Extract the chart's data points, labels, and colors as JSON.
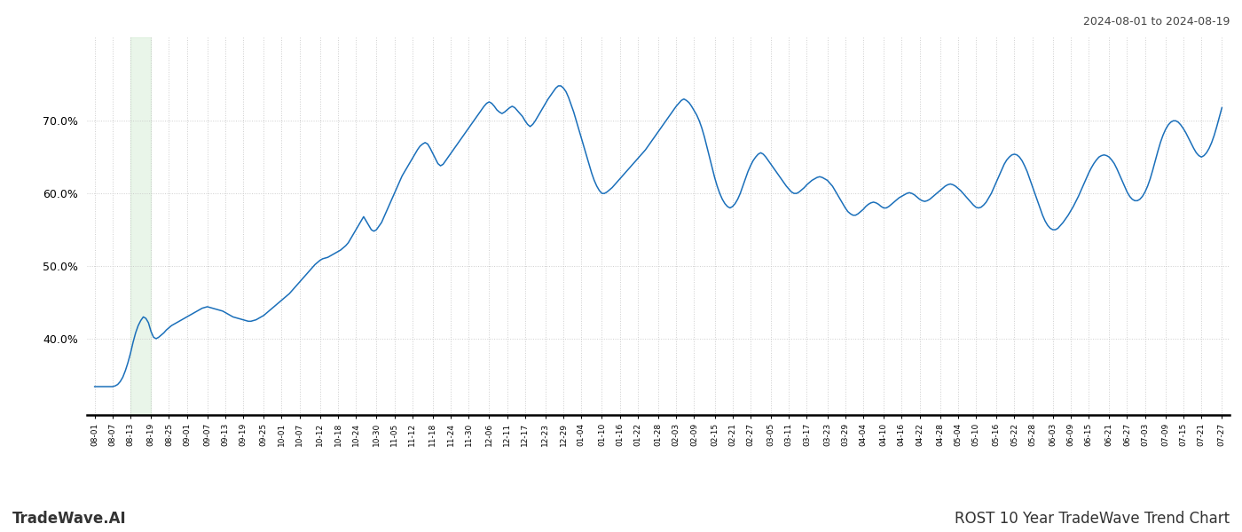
{
  "title_top_right": "2024-08-01 to 2024-08-19",
  "title_bottom_left": "TradeWave.AI",
  "title_bottom_right": "ROST 10 Year TradeWave Trend Chart",
  "line_color": "#1a6fba",
  "line_width": 1.1,
  "highlight_color": "#d4ecd4",
  "highlight_alpha": 0.5,
  "background_color": "#ffffff",
  "grid_color": "#c8c8c8",
  "grid_style": ":",
  "grid_alpha": 0.9,
  "ylim": [
    0.295,
    0.815
  ],
  "yticks": [
    0.4,
    0.5,
    0.6,
    0.7
  ],
  "x_labels": [
    "08-01",
    "08-07",
    "08-13",
    "08-19",
    "08-25",
    "09-01",
    "09-07",
    "09-13",
    "09-19",
    "09-25",
    "10-01",
    "10-07",
    "10-12",
    "10-18",
    "10-24",
    "10-30",
    "11-05",
    "11-12",
    "11-18",
    "11-24",
    "11-30",
    "12-06",
    "12-11",
    "12-17",
    "12-23",
    "12-29",
    "01-04",
    "01-10",
    "01-16",
    "01-22",
    "01-28",
    "02-03",
    "02-09",
    "02-15",
    "02-21",
    "02-27",
    "03-05",
    "03-11",
    "03-17",
    "03-23",
    "03-29",
    "04-04",
    "04-10",
    "04-16",
    "04-22",
    "04-28",
    "05-04",
    "05-10",
    "05-16",
    "05-22",
    "05-28",
    "06-03",
    "06-09",
    "06-15",
    "06-21",
    "06-27",
    "07-03",
    "07-09",
    "07-15",
    "07-21",
    "07-27"
  ],
  "y_values": [
    0.334,
    0.334,
    0.334,
    0.334,
    0.334,
    0.334,
    0.334,
    0.334,
    0.335,
    0.337,
    0.341,
    0.347,
    0.356,
    0.367,
    0.38,
    0.395,
    0.408,
    0.418,
    0.425,
    0.43,
    0.428,
    0.422,
    0.41,
    0.402,
    0.4,
    0.402,
    0.405,
    0.408,
    0.412,
    0.415,
    0.418,
    0.42,
    0.422,
    0.424,
    0.426,
    0.428,
    0.43,
    0.432,
    0.434,
    0.436,
    0.438,
    0.44,
    0.442,
    0.443,
    0.444,
    0.443,
    0.442,
    0.441,
    0.44,
    0.439,
    0.438,
    0.436,
    0.434,
    0.432,
    0.43,
    0.429,
    0.428,
    0.427,
    0.426,
    0.425,
    0.424,
    0.424,
    0.425,
    0.426,
    0.428,
    0.43,
    0.432,
    0.435,
    0.438,
    0.441,
    0.444,
    0.447,
    0.45,
    0.453,
    0.456,
    0.459,
    0.462,
    0.466,
    0.47,
    0.474,
    0.478,
    0.482,
    0.486,
    0.49,
    0.494,
    0.498,
    0.502,
    0.505,
    0.508,
    0.51,
    0.511,
    0.512,
    0.514,
    0.516,
    0.518,
    0.52,
    0.522,
    0.525,
    0.528,
    0.532,
    0.538,
    0.544,
    0.55,
    0.556,
    0.562,
    0.568,
    0.562,
    0.556,
    0.55,
    0.548,
    0.55,
    0.555,
    0.56,
    0.568,
    0.576,
    0.584,
    0.592,
    0.6,
    0.608,
    0.616,
    0.624,
    0.63,
    0.636,
    0.642,
    0.648,
    0.654,
    0.66,
    0.665,
    0.668,
    0.67,
    0.668,
    0.662,
    0.655,
    0.648,
    0.641,
    0.638,
    0.64,
    0.645,
    0.65,
    0.655,
    0.66,
    0.665,
    0.67,
    0.675,
    0.68,
    0.685,
    0.69,
    0.695,
    0.7,
    0.705,
    0.71,
    0.715,
    0.72,
    0.724,
    0.726,
    0.724,
    0.72,
    0.715,
    0.712,
    0.71,
    0.712,
    0.715,
    0.718,
    0.72,
    0.718,
    0.714,
    0.71,
    0.706,
    0.7,
    0.695,
    0.692,
    0.695,
    0.7,
    0.706,
    0.712,
    0.718,
    0.724,
    0.73,
    0.735,
    0.74,
    0.745,
    0.748,
    0.748,
    0.745,
    0.74,
    0.732,
    0.722,
    0.712,
    0.7,
    0.688,
    0.676,
    0.664,
    0.652,
    0.64,
    0.628,
    0.618,
    0.61,
    0.604,
    0.6,
    0.6,
    0.602,
    0.605,
    0.608,
    0.612,
    0.616,
    0.62,
    0.624,
    0.628,
    0.632,
    0.636,
    0.64,
    0.644,
    0.648,
    0.652,
    0.656,
    0.66,
    0.665,
    0.67,
    0.675,
    0.68,
    0.685,
    0.69,
    0.695,
    0.7,
    0.705,
    0.71,
    0.715,
    0.72,
    0.724,
    0.728,
    0.73,
    0.728,
    0.725,
    0.72,
    0.714,
    0.708,
    0.7,
    0.69,
    0.678,
    0.664,
    0.65,
    0.636,
    0.622,
    0.61,
    0.6,
    0.592,
    0.586,
    0.582,
    0.58,
    0.582,
    0.586,
    0.592,
    0.6,
    0.61,
    0.62,
    0.63,
    0.638,
    0.645,
    0.65,
    0.654,
    0.656,
    0.654,
    0.65,
    0.645,
    0.64,
    0.635,
    0.63,
    0.625,
    0.62,
    0.615,
    0.61,
    0.606,
    0.602,
    0.6,
    0.6,
    0.602,
    0.605,
    0.608,
    0.612,
    0.615,
    0.618,
    0.62,
    0.622,
    0.623,
    0.622,
    0.62,
    0.618,
    0.614,
    0.61,
    0.604,
    0.598,
    0.592,
    0.586,
    0.58,
    0.575,
    0.572,
    0.57,
    0.57,
    0.572,
    0.575,
    0.578,
    0.582,
    0.585,
    0.587,
    0.588,
    0.587,
    0.585,
    0.582,
    0.58,
    0.58,
    0.582,
    0.585,
    0.588,
    0.591,
    0.594,
    0.596,
    0.598,
    0.6,
    0.601,
    0.6,
    0.598,
    0.595,
    0.592,
    0.59,
    0.589,
    0.59,
    0.592,
    0.595,
    0.598,
    0.601,
    0.604,
    0.607,
    0.61,
    0.612,
    0.613,
    0.612,
    0.61,
    0.607,
    0.604,
    0.6,
    0.596,
    0.592,
    0.588,
    0.584,
    0.581,
    0.58,
    0.581,
    0.584,
    0.588,
    0.594,
    0.6,
    0.608,
    0.616,
    0.624,
    0.632,
    0.64,
    0.646,
    0.65,
    0.653,
    0.654,
    0.653,
    0.65,
    0.645,
    0.638,
    0.63,
    0.62,
    0.61,
    0.6,
    0.59,
    0.58,
    0.57,
    0.562,
    0.556,
    0.552,
    0.55,
    0.55,
    0.552,
    0.556,
    0.56,
    0.565,
    0.57,
    0.576,
    0.582,
    0.589,
    0.596,
    0.604,
    0.612,
    0.62,
    0.628,
    0.635,
    0.641,
    0.646,
    0.65,
    0.652,
    0.653,
    0.652,
    0.65,
    0.646,
    0.641,
    0.634,
    0.626,
    0.618,
    0.61,
    0.602,
    0.596,
    0.592,
    0.59,
    0.59,
    0.592,
    0.596,
    0.602,
    0.61,
    0.62,
    0.632,
    0.645,
    0.658,
    0.67,
    0.68,
    0.688,
    0.694,
    0.698,
    0.7,
    0.7,
    0.698,
    0.694,
    0.689,
    0.683,
    0.676,
    0.669,
    0.662,
    0.656,
    0.652,
    0.65,
    0.652,
    0.656,
    0.662,
    0.67,
    0.68,
    0.692,
    0.705,
    0.718
  ]
}
